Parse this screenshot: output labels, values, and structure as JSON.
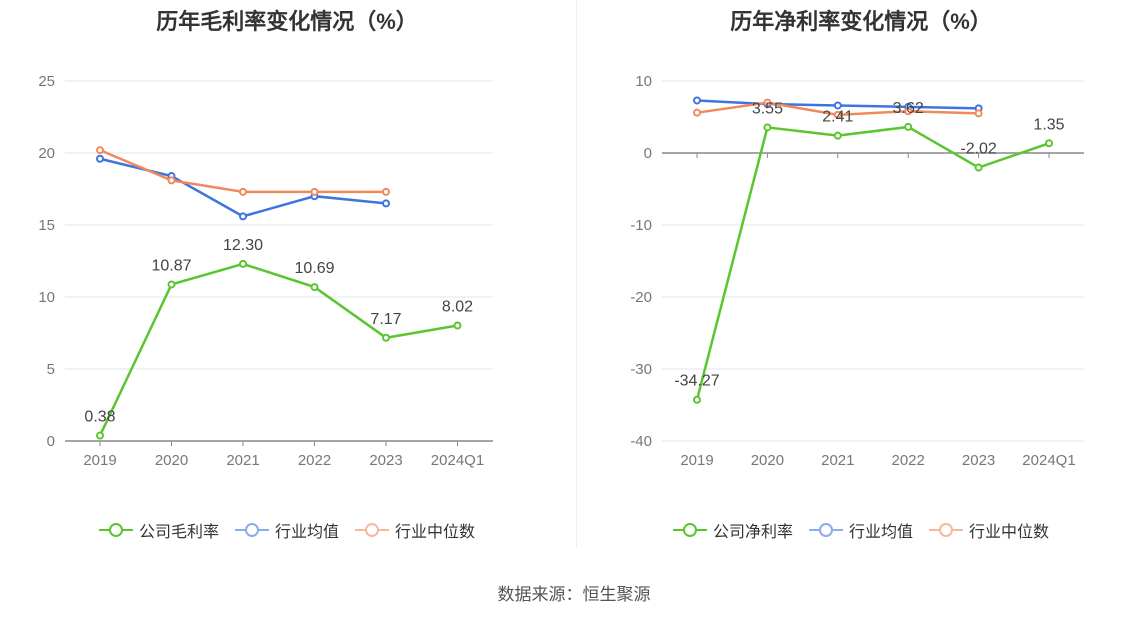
{
  "source_label": "数据来源：恒生聚源",
  "colors": {
    "company": "#5ac52f",
    "industry_avg": "#3d74e0",
    "industry_median": "#f08a5d"
  },
  "chart_data": [
    {
      "type": "line",
      "title": "历年毛利率变化情况（%）",
      "categories": [
        "2019",
        "2020",
        "2021",
        "2022",
        "2023",
        "2024Q1"
      ],
      "ylim": [
        0,
        25
      ],
      "yticks": [
        0,
        5,
        10,
        15,
        20,
        25
      ],
      "grid": true,
      "legend": "bottom",
      "series": [
        {
          "name": "公司毛利率",
          "key": "company",
          "values": [
            0.38,
            10.87,
            12.3,
            10.69,
            7.17,
            8.02
          ],
          "labels": [
            "0.38",
            "10.87",
            "12.30",
            "10.69",
            "7.17",
            "8.02"
          ]
        },
        {
          "name": "行业均值",
          "key": "industry_avg",
          "values": [
            19.6,
            18.4,
            15.6,
            17.0,
            16.5,
            null
          ]
        },
        {
          "name": "行业中位数",
          "key": "industry_median",
          "values": [
            20.2,
            18.1,
            17.3,
            17.3,
            17.3,
            null
          ]
        }
      ]
    },
    {
      "type": "line",
      "title": "历年净利率变化情况（%）",
      "categories": [
        "2019",
        "2020",
        "2021",
        "2022",
        "2023",
        "2024Q1"
      ],
      "ylim": [
        -40,
        10
      ],
      "yticks": [
        -40,
        -30,
        -20,
        -10,
        0,
        10
      ],
      "grid": true,
      "legend": "bottom",
      "series": [
        {
          "name": "公司净利率",
          "key": "company",
          "values": [
            -34.27,
            3.55,
            2.41,
            3.62,
            -2.02,
            1.35
          ],
          "labels": [
            "-34.27",
            "3.55",
            "2.41",
            "3.62",
            "-2.02",
            "1.35"
          ]
        },
        {
          "name": "行业均值",
          "key": "industry_avg",
          "values": [
            7.3,
            6.8,
            6.6,
            6.4,
            6.2,
            null
          ]
        },
        {
          "name": "行业中位数",
          "key": "industry_median",
          "values": [
            5.6,
            7.0,
            5.3,
            5.8,
            5.5,
            null
          ]
        }
      ]
    }
  ]
}
